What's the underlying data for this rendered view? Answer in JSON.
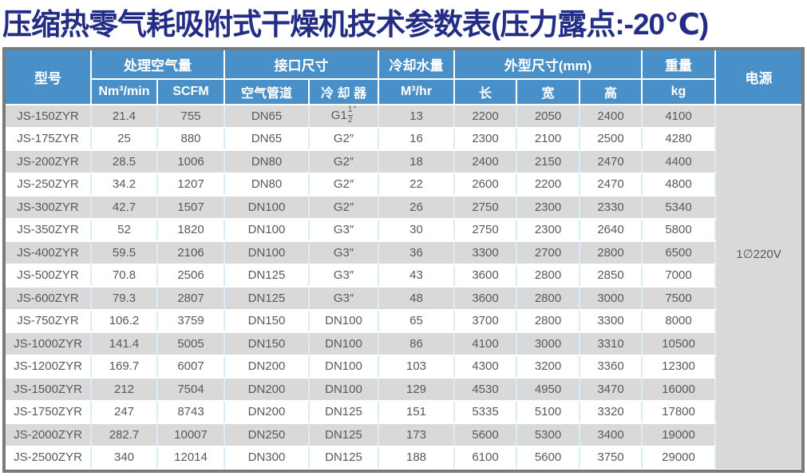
{
  "title": "压缩热零气耗吸附式干燥机技术参数表(压力露点:-20℃)",
  "colors": {
    "title_navy": "#232d85",
    "header_blue": "#4a90c8",
    "stripe_gray": "#d9d9d9",
    "grid_blue": "#d8edf8",
    "frame_gray": "#7a7a7a",
    "cell_text": "#58595b"
  },
  "table": {
    "headers": {
      "model": "型号",
      "air_capacity": "处理空气量",
      "air_capacity_units": [
        "Nm³/min",
        "SCFM"
      ],
      "interface_size": "接口尺寸",
      "interface_cols": [
        "空气管道",
        "冷 却 器"
      ],
      "cooling_water": "冷却水量",
      "cooling_water_unit": "M³/hr",
      "dimensions": "外型尺寸(mm)",
      "dimension_cols": [
        "长",
        "宽",
        "高"
      ],
      "weight": "重量",
      "weight_unit": "kg",
      "power": "电源"
    },
    "power_value": "1∅220V",
    "rows": [
      {
        "model": "JS-150ZYR",
        "nm3_min": "21.4",
        "scfm": "755",
        "air_pipe": "DN65",
        "cooler": {
          "pre": "G1",
          "num": "1",
          "den": "2",
          "post": "\""
        },
        "water": "13",
        "length": "2200",
        "width": "2050",
        "height": "2400",
        "weight": "4100"
      },
      {
        "model": "JS-175ZYR",
        "nm3_min": "25",
        "scfm": "880",
        "air_pipe": "DN65",
        "cooler": "G2″",
        "water": "16",
        "length": "2300",
        "width": "2100",
        "height": "2500",
        "weight": "4280"
      },
      {
        "model": "JS-200ZYR",
        "nm3_min": "28.5",
        "scfm": "1006",
        "air_pipe": "DN80",
        "cooler": "G2″",
        "water": "18",
        "length": "2400",
        "width": "2150",
        "height": "2470",
        "weight": "4400"
      },
      {
        "model": "JS-250ZYR",
        "nm3_min": "34.2",
        "scfm": "1207",
        "air_pipe": "DN80",
        "cooler": "G2″",
        "water": "22",
        "length": "2600",
        "width": "2200",
        "height": "2470",
        "weight": "4800"
      },
      {
        "model": "JS-300ZYR",
        "nm3_min": "42.7",
        "scfm": "1507",
        "air_pipe": "DN100",
        "cooler": "G2″",
        "water": "26",
        "length": "2750",
        "width": "2300",
        "height": "2330",
        "weight": "5340"
      },
      {
        "model": "JS-350ZYR",
        "nm3_min": "52",
        "scfm": "1820",
        "air_pipe": "DN100",
        "cooler": "G3″",
        "water": "30",
        "length": "2750",
        "width": "2300",
        "height": "2640",
        "weight": "5800"
      },
      {
        "model": "JS-400ZYR",
        "nm3_min": "59.5",
        "scfm": "2106",
        "air_pipe": "DN100",
        "cooler": "G3″",
        "water": "36",
        "length": "3300",
        "width": "2700",
        "height": "2800",
        "weight": "6500"
      },
      {
        "model": "JS-500ZYR",
        "nm3_min": "70.8",
        "scfm": "2506",
        "air_pipe": "DN125",
        "cooler": "G3″",
        "water": "43",
        "length": "3600",
        "width": "2800",
        "height": "2850",
        "weight": "7000"
      },
      {
        "model": "JS-600ZYR",
        "nm3_min": "79.3",
        "scfm": "2807",
        "air_pipe": "DN125",
        "cooler": "G3″",
        "water": "48",
        "length": "3600",
        "width": "2800",
        "height": "3000",
        "weight": "7500"
      },
      {
        "model": "JS-750ZYR",
        "nm3_min": "106.2",
        "scfm": "3759",
        "air_pipe": "DN150",
        "cooler": "DN100",
        "water": "65",
        "length": "3700",
        "width": "2800",
        "height": "3300",
        "weight": "8000"
      },
      {
        "model": "JS-1000ZYR",
        "nm3_min": "141.4",
        "scfm": "5005",
        "air_pipe": "DN150",
        "cooler": "DN100",
        "water": "86",
        "length": "4100",
        "width": "3000",
        "height": "3310",
        "weight": "10500"
      },
      {
        "model": "JS-1200ZYR",
        "nm3_min": "169.7",
        "scfm": "6007",
        "air_pipe": "DN200",
        "cooler": "DN100",
        "water": "103",
        "length": "4300",
        "width": "3200",
        "height": "3360",
        "weight": "12300"
      },
      {
        "model": "JS-1500ZYR",
        "nm3_min": "212",
        "scfm": "7504",
        "air_pipe": "DN200",
        "cooler": "DN100",
        "water": "129",
        "length": "4530",
        "width": "4950",
        "height": "3470",
        "weight": "16000"
      },
      {
        "model": "JS-1750ZYR",
        "nm3_min": "247",
        "scfm": "8743",
        "air_pipe": "DN200",
        "cooler": "DN125",
        "water": "151",
        "length": "5335",
        "width": "5100",
        "height": "3320",
        "weight": "17800"
      },
      {
        "model": "JS-2000ZYR",
        "nm3_min": "282.7",
        "scfm": "10007",
        "air_pipe": "DN250",
        "cooler": "DN125",
        "water": "173",
        "length": "5600",
        "width": "5300",
        "height": "3400",
        "weight": "19000"
      },
      {
        "model": "JS-2500ZYR",
        "nm3_min": "340",
        "scfm": "12014",
        "air_pipe": "DN300",
        "cooler": "DN125",
        "water": "188",
        "length": "6100",
        "width": "5600",
        "height": "3750",
        "weight": "29000"
      }
    ]
  }
}
